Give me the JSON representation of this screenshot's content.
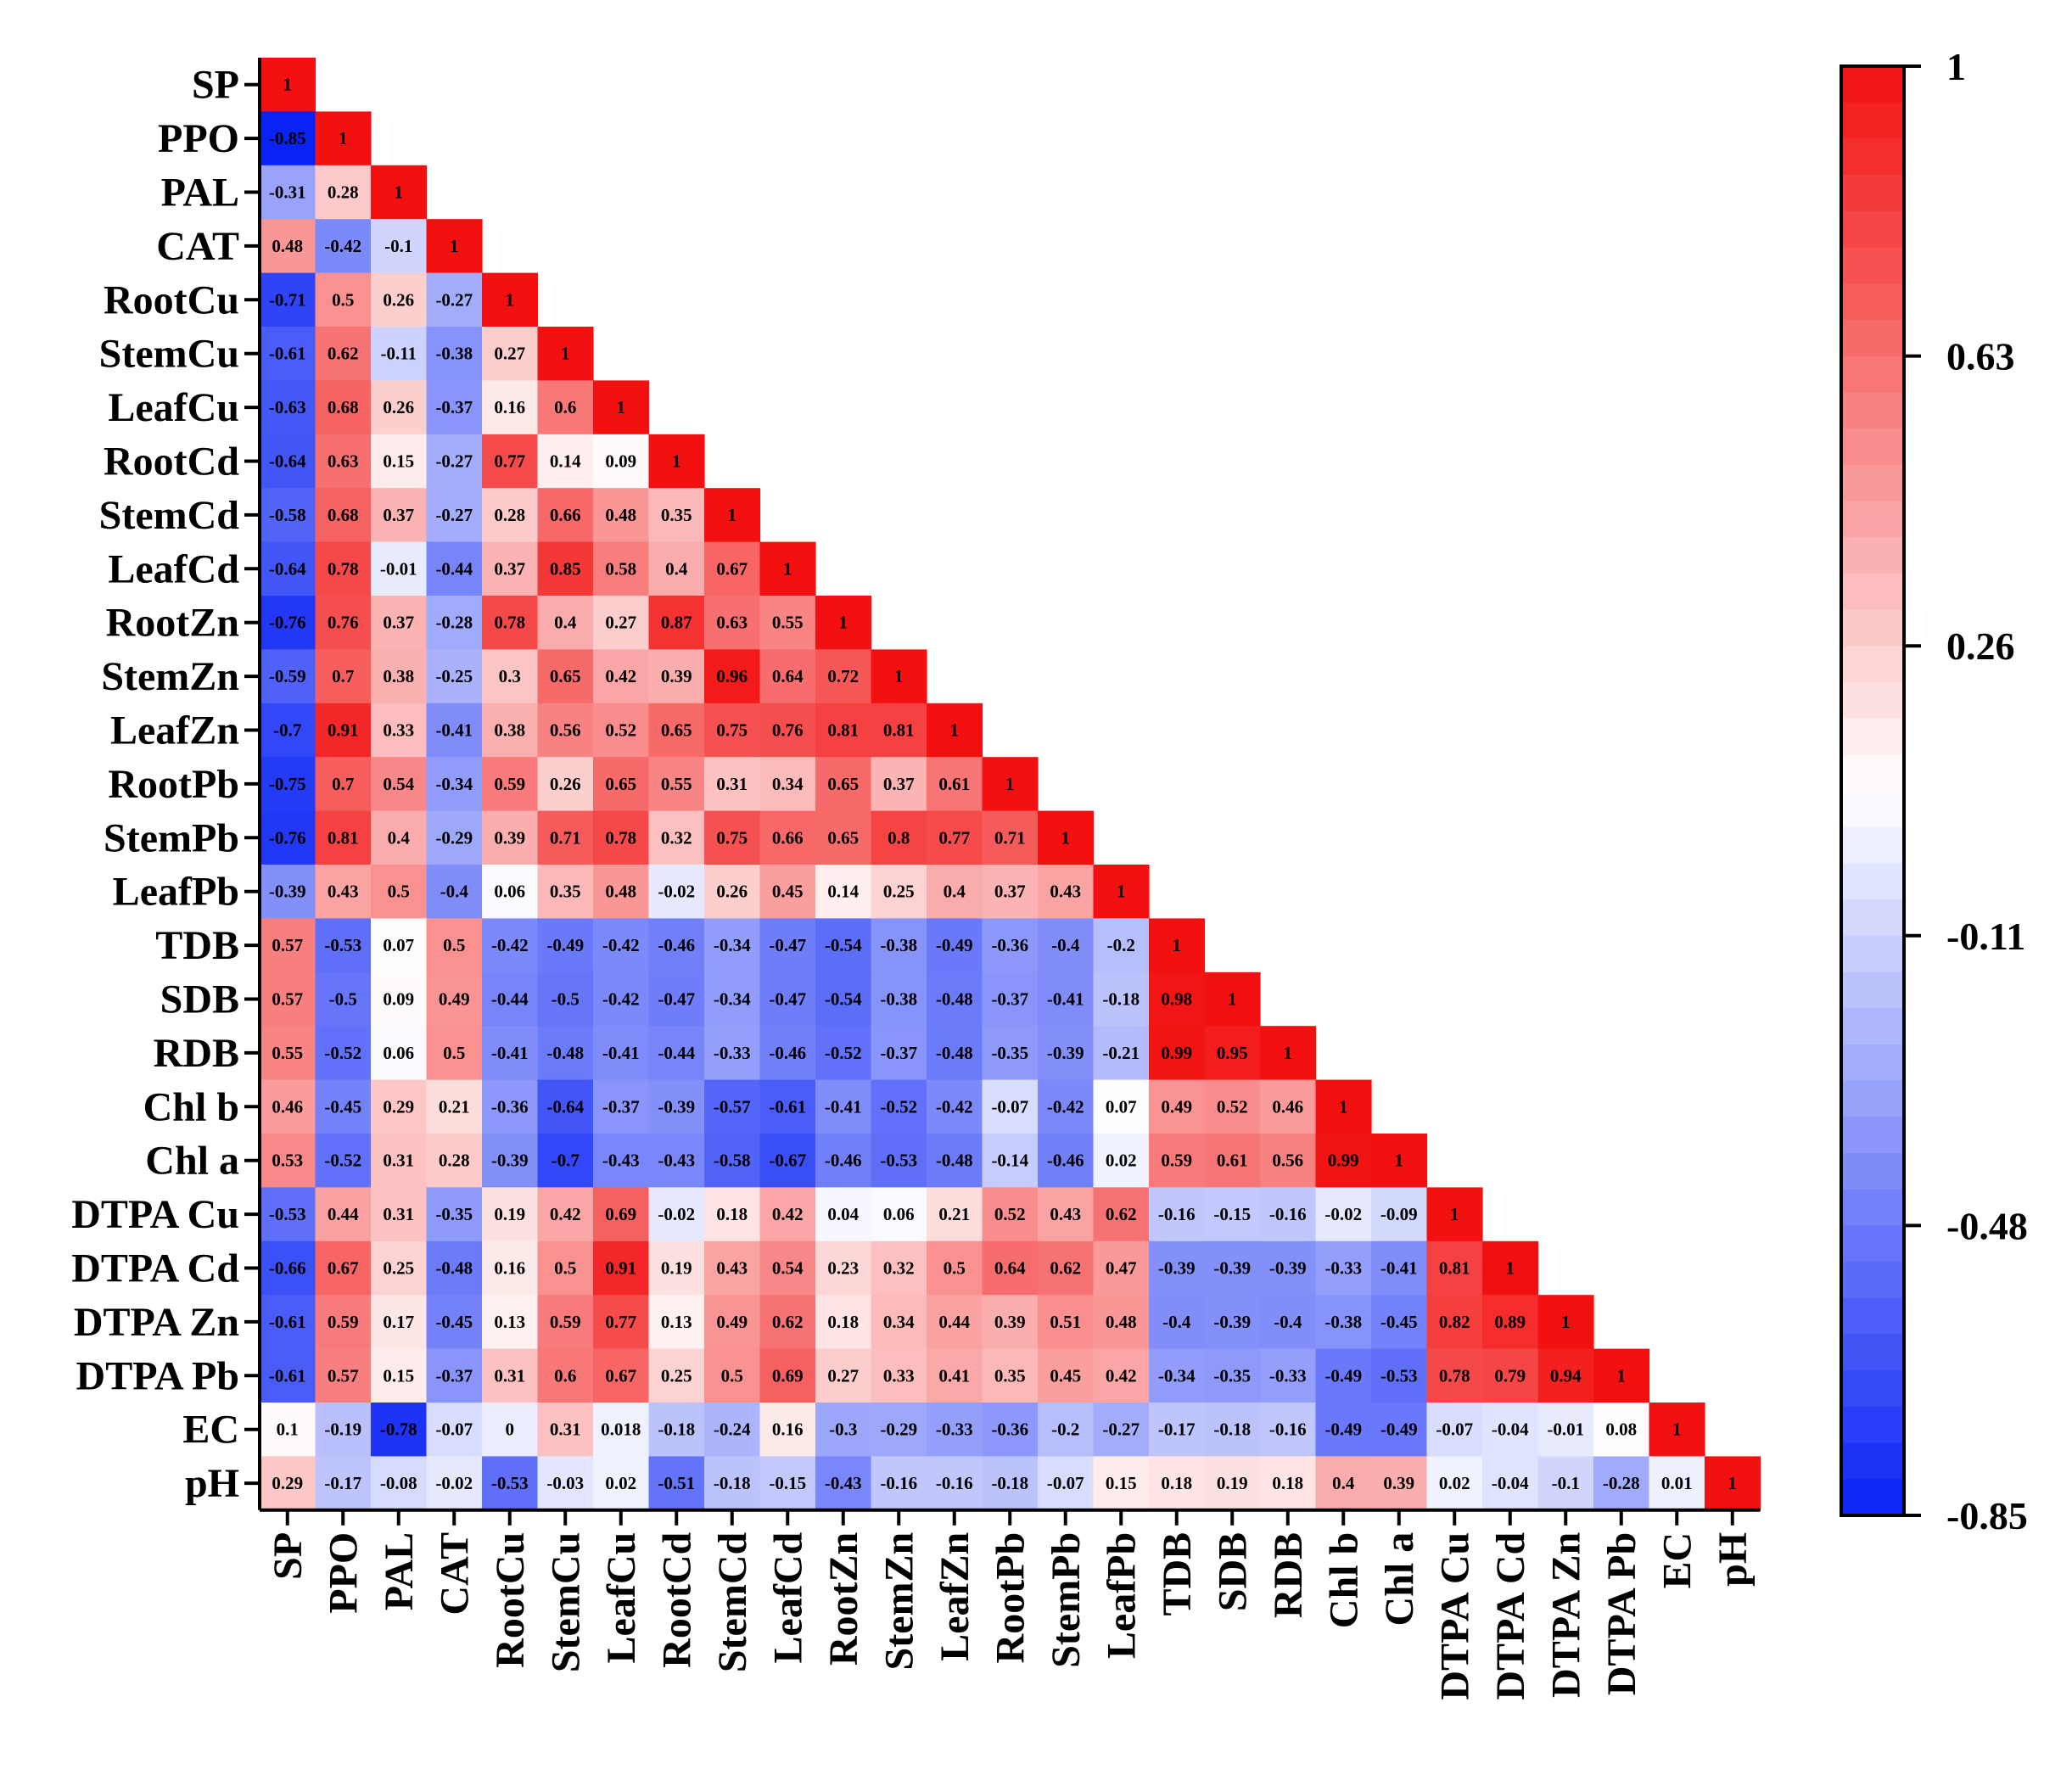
{
  "chart_data": {
    "type": "heatmap",
    "variables": [
      "SP",
      "PPO",
      "PAL",
      "CAT",
      "RootCu",
      "StemCu",
      "LeafCu",
      "RootCd",
      "StemCd",
      "LeafCd",
      "RootZn",
      "StemZn",
      "LeafZn",
      "RootPb",
      "StemPb",
      "LeafPb",
      "TDB",
      "SDB",
      "RDB",
      "Chl b",
      "Chl a",
      "DTPA Cu",
      "DTPA Cd",
      "DTPA Zn",
      "DTPA Pb",
      "EC",
      "pH"
    ],
    "cell_labels": [
      [
        "1"
      ],
      [
        "-0.85",
        "1"
      ],
      [
        "-0.31",
        "0.28",
        "1"
      ],
      [
        "0.48",
        "-0.42",
        "-0.1",
        "1"
      ],
      [
        "-0.71",
        "0.5",
        "0.26",
        "-0.27",
        "1"
      ],
      [
        "-0.61",
        "0.62",
        "-0.11",
        "-0.38",
        "0.27",
        "1"
      ],
      [
        "-0.63",
        "0.68",
        "0.26",
        "-0.37",
        "0.16",
        "0.6",
        "1"
      ],
      [
        "-0.64",
        "0.63",
        "0.15",
        "-0.27",
        "0.77",
        "0.14",
        "0.09",
        "1"
      ],
      [
        "-0.58",
        "0.68",
        "0.37",
        "-0.27",
        "0.28",
        "0.66",
        "0.48",
        "0.35",
        "1"
      ],
      [
        "-0.64",
        "0.78",
        "-0.01",
        "-0.44",
        "0.37",
        "0.85",
        "0.58",
        "0.4",
        "0.67",
        "1"
      ],
      [
        "-0.76",
        "0.76",
        "0.37",
        "-0.28",
        "0.78",
        "0.4",
        "0.27",
        "0.87",
        "0.63",
        "0.55",
        "1"
      ],
      [
        "-0.59",
        "0.7",
        "0.38",
        "-0.25",
        "0.3",
        "0.65",
        "0.42",
        "0.39",
        "0.96",
        "0.64",
        "0.72",
        "1"
      ],
      [
        "-0.7",
        "0.91",
        "0.33",
        "-0.41",
        "0.38",
        "0.56",
        "0.52",
        "0.65",
        "0.75",
        "0.76",
        "0.81",
        "0.81",
        "1"
      ],
      [
        "-0.75",
        "0.7",
        "0.54",
        "-0.34",
        "0.59",
        "0.26",
        "0.65",
        "0.55",
        "0.31",
        "0.34",
        "0.65",
        "0.37",
        "0.61",
        "1"
      ],
      [
        "-0.76",
        "0.81",
        "0.4",
        "-0.29",
        "0.39",
        "0.71",
        "0.78",
        "0.32",
        "0.75",
        "0.66",
        "0.65",
        "0.8",
        "0.77",
        "0.71",
        "1"
      ],
      [
        "-0.39",
        "0.43",
        "0.5",
        "-0.4",
        "0.06",
        "0.35",
        "0.48",
        "-0.02",
        "0.26",
        "0.45",
        "0.14",
        "0.25",
        "0.4",
        "0.37",
        "0.43",
        "1"
      ],
      [
        "0.57",
        "-0.53",
        "0.07",
        "0.5",
        "-0.42",
        "-0.49",
        "-0.42",
        "-0.46",
        "-0.34",
        "-0.47",
        "-0.54",
        "-0.38",
        "-0.49",
        "-0.36",
        "-0.4",
        "-0.2",
        "1"
      ],
      [
        "0.57",
        "-0.5",
        "0.09",
        "0.49",
        "-0.44",
        "-0.5",
        "-0.42",
        "-0.47",
        "-0.34",
        "-0.47",
        "-0.54",
        "-0.38",
        "-0.48",
        "-0.37",
        "-0.41",
        "-0.18",
        "0.98",
        "1"
      ],
      [
        "0.55",
        "-0.52",
        "0.06",
        "0.5",
        "-0.41",
        "-0.48",
        "-0.41",
        "-0.44",
        "-0.33",
        "-0.46",
        "-0.52",
        "-0.37",
        "-0.48",
        "-0.35",
        "-0.39",
        "-0.21",
        "0.99",
        "0.95",
        "1"
      ],
      [
        "0.46",
        "-0.45",
        "0.29",
        "0.21",
        "-0.36",
        "-0.64",
        "-0.37",
        "-0.39",
        "-0.57",
        "-0.61",
        "-0.41",
        "-0.52",
        "-0.42",
        "-0.07",
        "-0.42",
        "0.07",
        "0.49",
        "0.52",
        "0.46",
        "1"
      ],
      [
        "0.53",
        "-0.52",
        "0.31",
        "0.28",
        "-0.39",
        "-0.7",
        "-0.43",
        "-0.43",
        "-0.58",
        "-0.67",
        "-0.46",
        "-0.53",
        "-0.48",
        "-0.14",
        "-0.46",
        "0.02",
        "0.59",
        "0.61",
        "0.56",
        "0.99",
        "1"
      ],
      [
        "-0.53",
        "0.44",
        "0.31",
        "-0.35",
        "0.19",
        "0.42",
        "0.69",
        "-0.02",
        "0.18",
        "0.42",
        "0.04",
        "0.06",
        "0.21",
        "0.52",
        "0.43",
        "0.62",
        "-0.16",
        "-0.15",
        "-0.16",
        "-0.02",
        "-0.09",
        "1"
      ],
      [
        "-0.66",
        "0.67",
        "0.25",
        "-0.48",
        "0.16",
        "0.5",
        "0.91",
        "0.19",
        "0.43",
        "0.54",
        "0.23",
        "0.32",
        "0.5",
        "0.64",
        "0.62",
        "0.47",
        "-0.39",
        "-0.39",
        "-0.39",
        "-0.33",
        "-0.41",
        "0.81",
        "1"
      ],
      [
        "-0.61",
        "0.59",
        "0.17",
        "-0.45",
        "0.13",
        "0.59",
        "0.77",
        "0.13",
        "0.49",
        "0.62",
        "0.18",
        "0.34",
        "0.44",
        "0.39",
        "0.51",
        "0.48",
        "-0.4",
        "-0.39",
        "-0.4",
        "-0.38",
        "-0.45",
        "0.82",
        "0.89",
        "1"
      ],
      [
        "-0.61",
        "0.57",
        "0.15",
        "-0.37",
        "0.31",
        "0.6",
        "0.67",
        "0.25",
        "0.5",
        "0.69",
        "0.27",
        "0.33",
        "0.41",
        "0.35",
        "0.45",
        "0.42",
        "-0.34",
        "-0.35",
        "-0.33",
        "-0.49",
        "-0.53",
        "0.78",
        "0.79",
        "0.94",
        "1"
      ],
      [
        "0.1",
        "-0.19",
        "-0.78",
        "-0.07",
        "0",
        "0.31",
        "0.018",
        "-0.18",
        "-0.24",
        "0.16",
        "-0.3",
        "-0.29",
        "-0.33",
        "-0.36",
        "-0.2",
        "-0.27",
        "-0.17",
        "-0.18",
        "-0.16",
        "-0.49",
        "-0.49",
        "-0.07",
        "-0.04",
        "-0.01",
        "0.08",
        "1"
      ],
      [
        "0.29",
        "-0.17",
        "-0.08",
        "-0.02",
        "-0.53",
        "-0.03",
        "0.02",
        "-0.51",
        "-0.18",
        "-0.15",
        "-0.43",
        "-0.16",
        "-0.16",
        "-0.18",
        "-0.07",
        "0.15",
        "0.18",
        "0.19",
        "0.18",
        "0.4",
        "0.39",
        "0.02",
        "-0.04",
        "-0.1",
        "-0.28",
        "0.01",
        "1"
      ]
    ],
    "colorbar": {
      "min": -0.85,
      "max": 1,
      "tick_labels": [
        "1",
        "0.63",
        "0.26",
        "-0.11",
        "-0.48",
        "-0.85"
      ],
      "low_color": "#0a23f5",
      "mid_color": "#ffffff",
      "high_color": "#f21010"
    },
    "layout": "lower-triangle"
  }
}
